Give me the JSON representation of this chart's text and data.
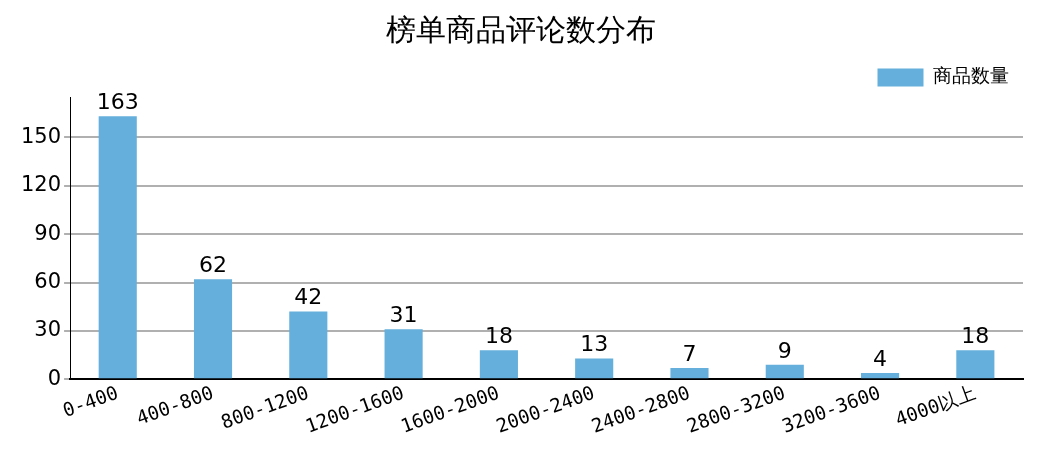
{
  "chart_data": {
    "type": "bar",
    "title": "榜单商品评论数分布",
    "categories": [
      "0-400",
      "400-800",
      "800-1200",
      "1200-1600",
      "1600-2000",
      "2000-2400",
      "2400-2800",
      "2800-3200",
      "3200-3600",
      "4000以上"
    ],
    "series": [
      {
        "name": "商品数量",
        "color": "#64afdb",
        "values": [
          163,
          62,
          42,
          31,
          18,
          13,
          7,
          9,
          4,
          18
        ]
      }
    ],
    "ylim": [
      0,
      175
    ],
    "yticks": [
      0,
      30,
      60,
      90,
      120,
      150
    ],
    "grid": "y",
    "legend": "top right",
    "data_labels": true
  }
}
